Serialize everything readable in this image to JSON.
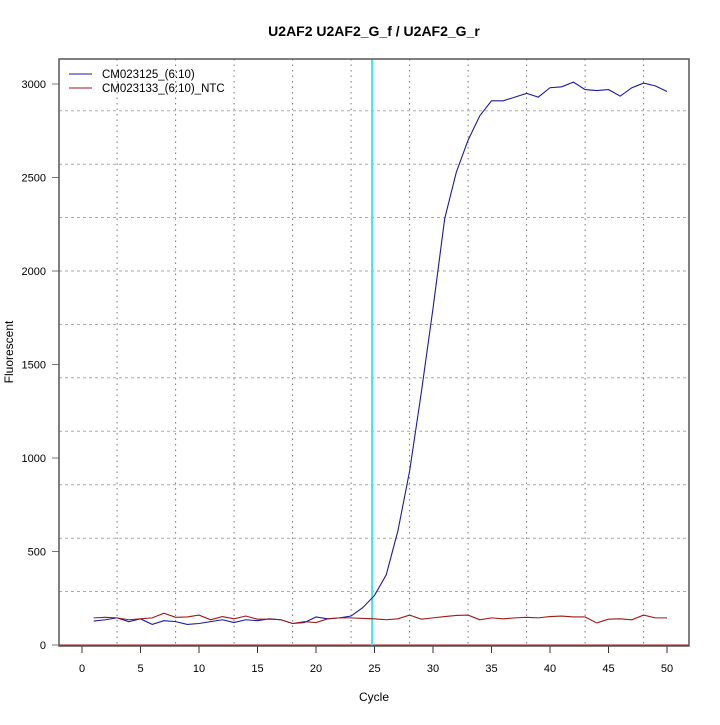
{
  "chart_data": {
    "type": "line",
    "title": "U2AF2  U2AF2_G_f / U2AF2_G_r",
    "xlabel": "Cycle",
    "ylabel": "Fluorescent",
    "xlim": [
      -2,
      52
    ],
    "ylim": [
      -3,
      3142
    ],
    "xticks": [
      0,
      5,
      10,
      15,
      20,
      25,
      30,
      35,
      40,
      45,
      50
    ],
    "yticks": [
      0,
      500,
      1000,
      1500,
      2000,
      2500,
      3000
    ],
    "grid": true,
    "x_gridlines": [
      3,
      8,
      13,
      18,
      23,
      28,
      33,
      38,
      43,
      48
    ],
    "y_gridlines": [
      286,
      571,
      857,
      1143,
      1429,
      1714,
      2000,
      2286,
      2571,
      2857
    ],
    "legend_position": "top-left",
    "threshold_line": {
      "x": 24.8,
      "color": "#40e0f0"
    },
    "series": [
      {
        "name": "CM023125_(6:10)",
        "color": "#1a1aa0",
        "x": [
          1,
          2,
          3,
          4,
          5,
          6,
          7,
          8,
          9,
          10,
          11,
          12,
          13,
          14,
          15,
          16,
          17,
          18,
          19,
          20,
          21,
          22,
          23,
          24,
          25,
          26,
          27,
          28,
          29,
          30,
          31,
          32,
          33,
          34,
          35,
          36,
          37,
          38,
          39,
          40,
          41,
          42,
          43,
          44,
          45,
          46,
          47,
          48,
          49,
          50
        ],
        "y": [
          128,
          135,
          145,
          125,
          140,
          110,
          130,
          125,
          110,
          115,
          125,
          135,
          120,
          135,
          130,
          140,
          135,
          115,
          120,
          150,
          140,
          145,
          155,
          200,
          265,
          375,
          610,
          930,
          1350,
          1800,
          2280,
          2530,
          2700,
          2830,
          2910,
          2910,
          2930,
          2950,
          2930,
          2980,
          2985,
          3010,
          2970,
          2965,
          2970,
          2935,
          2980,
          3005,
          2990,
          2960
        ]
      },
      {
        "name": "CM023133_(6:10)_NTC",
        "color": "#a01818",
        "x": [
          1,
          2,
          3,
          4,
          5,
          6,
          7,
          8,
          9,
          10,
          11,
          12,
          13,
          14,
          15,
          16,
          17,
          18,
          19,
          20,
          21,
          22,
          23,
          24,
          25,
          26,
          27,
          28,
          29,
          30,
          31,
          32,
          33,
          34,
          35,
          36,
          37,
          38,
          39,
          40,
          41,
          42,
          43,
          44,
          45,
          46,
          47,
          48,
          49,
          50
        ],
        "y": [
          145,
          148,
          145,
          135,
          140,
          145,
          170,
          148,
          150,
          160,
          135,
          152,
          140,
          155,
          138,
          138,
          135,
          115,
          125,
          120,
          140,
          145,
          145,
          142,
          140,
          135,
          140,
          160,
          138,
          145,
          152,
          158,
          160,
          135,
          145,
          140,
          145,
          148,
          145,
          152,
          155,
          150,
          150,
          118,
          138,
          140,
          135,
          160,
          145,
          145
        ]
      }
    ]
  }
}
